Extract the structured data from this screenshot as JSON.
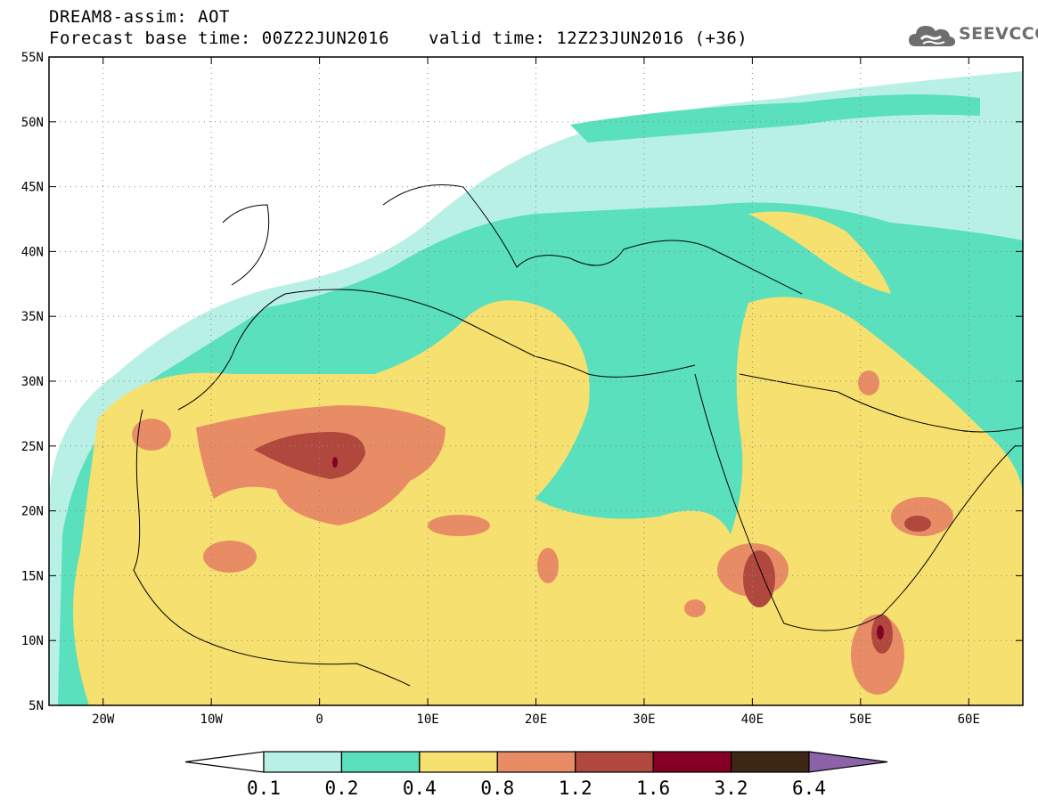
{
  "title": {
    "line1": "DREAM8-assim: AOT",
    "base_time": "Forecast base time: 00Z22JUN2016",
    "valid_time": "valid time: 12Z23JUN2016 (+36)"
  },
  "logo": {
    "text": "SEEVCCC",
    "icon": "cloud-logo-icon",
    "color": "#6e6e6e"
  },
  "map": {
    "lat_range": [
      5,
      55
    ],
    "lon_range": [
      -25,
      65
    ],
    "lat_ticks": [
      {
        "value": 55,
        "label": "55N"
      },
      {
        "value": 50,
        "label": "50N"
      },
      {
        "value": 45,
        "label": "45N"
      },
      {
        "value": 40,
        "label": "40N"
      },
      {
        "value": 35,
        "label": "35N"
      },
      {
        "value": 30,
        "label": "30N"
      },
      {
        "value": 25,
        "label": "25N"
      },
      {
        "value": 20,
        "label": "20N"
      },
      {
        "value": 15,
        "label": "15N"
      },
      {
        "value": 10,
        "label": "10N"
      },
      {
        "value": 5,
        "label": "5N"
      }
    ],
    "lon_ticks": [
      {
        "value": -20,
        "label": "20W"
      },
      {
        "value": -10,
        "label": "10W"
      },
      {
        "value": 0,
        "label": "0"
      },
      {
        "value": 10,
        "label": "10E"
      },
      {
        "value": 20,
        "label": "20E"
      },
      {
        "value": 30,
        "label": "30E"
      },
      {
        "value": 40,
        "label": "40E"
      },
      {
        "value": 50,
        "label": "50E"
      },
      {
        "value": 60,
        "label": "60E"
      }
    ],
    "gridlines": "dotted"
  },
  "colorbar": {
    "labels": [
      "0.1",
      "0.2",
      "0.4",
      "0.8",
      "1.2",
      "1.6",
      "3.2",
      "6.4"
    ],
    "colors": [
      "#ffffff",
      "#b8f0e6",
      "#5ae0bc",
      "#f6e070",
      "#e88c66",
      "#b0483e",
      "#860024",
      "#3e2614",
      "#8c62a8"
    ]
  }
}
